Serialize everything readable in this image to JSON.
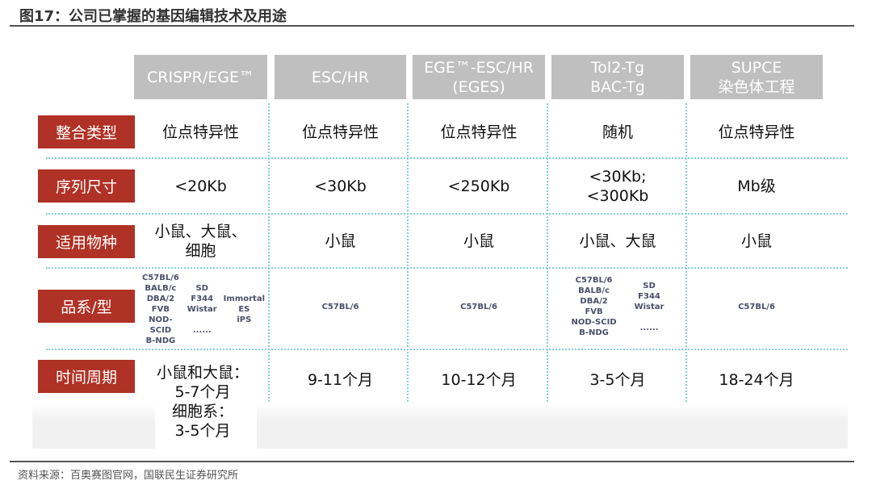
{
  "title": "图17：公司已掌握的基因编辑技术及用途",
  "columns": [
    "CRISPR/EGE™",
    "ESC/HR",
    "EGE™-ESC/HR\n(EGES)",
    "Tol2-Tg\nBAC-Tg",
    "SUPCE\n染色体工程"
  ],
  "rows": [
    {
      "label": "整合类型",
      "values": [
        "位点特异性",
        "位点特异性",
        "位点特异性",
        "随机",
        "位点特异性"
      ]
    },
    {
      "label": "序列尺寸",
      "values": [
        "<20Kb",
        "<30Kb",
        "<250Kb",
        "<30Kb;\n<300Kb",
        "Mb级"
      ]
    },
    {
      "label": "适用物种",
      "values": [
        "小鼠、大鼠、\n细胞",
        "小鼠",
        "小鼠",
        "小鼠、大鼠",
        "小鼠"
      ]
    },
    {
      "label": "品系/型",
      "values": [
        "",
        "C57BL/6",
        "C57BL/6",
        "",
        "C57BL/6"
      ],
      "strains_col1": {
        "mouse": "C57BL/6\nBALB/c\nDBA/2\nFVB\nNOD-SCID\nB-NDG",
        "rat": "SD\nF344\nWistar\n\n......",
        "cell": "Immortal\nES\niPS"
      },
      "strains_col4": {
        "mouse": "C57BL/6\nBALB/c\nDBA/2\nFVB\nNOD-SCID\nB-NDG",
        "rat": "SD\nF344\nWistar\n\n......"
      }
    },
    {
      "label": "时间周期",
      "values": [
        "小鼠和大鼠：\n5-7个月\n细胞系：\n3-5个月",
        "9-11个月",
        "10-12个月",
        "3-5个月",
        "18-24个月"
      ]
    }
  ],
  "source": "资料来源：百奥赛图官网，国联民生证券研究所",
  "colors": {
    "label_bg": "#b03125",
    "header_bg": "#bfbfbf",
    "separator": "#7fd3cf"
  }
}
